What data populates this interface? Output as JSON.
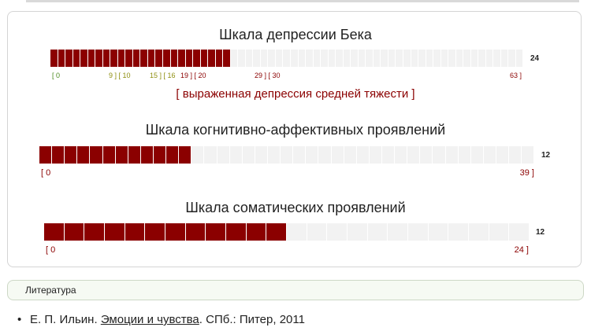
{
  "beck": {
    "title": "Шкала депрессии Бека",
    "score": "24",
    "filled": 24,
    "max": 63,
    "ticks": [
      {
        "text": "[ 0",
        "color": "green"
      },
      {
        "text": "9 ] [ 10",
        "color": "olive"
      },
      {
        "text": "15 ] [ 16",
        "color": "olive"
      },
      {
        "text": "19 ] [ 20",
        "color": "red"
      },
      {
        "text": "29 ] [ 30",
        "color": "red"
      },
      {
        "text": "63 ]",
        "color": "red"
      }
    ],
    "interpretation": "[ выраженная депрессия средней тяжести ]"
  },
  "cognitive": {
    "title": "Шкала когнитивно-аффективных проявлений",
    "score": "12",
    "filled": 12,
    "max": 39,
    "tick_start": "[ 0",
    "tick_end": "39 ]"
  },
  "somatic": {
    "title": "Шкала соматических проявлений",
    "score": "12",
    "filled": 12,
    "max": 24,
    "tick_start": "[ 0",
    "tick_end": "24 ]"
  },
  "literature": {
    "label": "Литература",
    "author": "Е. П. Ильин.",
    "book": "Эмоции и чувства",
    "publisher": ". СПб.: Питер, 2011"
  },
  "colors": {
    "filled": "#8b0000",
    "empty": "#f2f2f2",
    "accent": "#8b0000"
  }
}
